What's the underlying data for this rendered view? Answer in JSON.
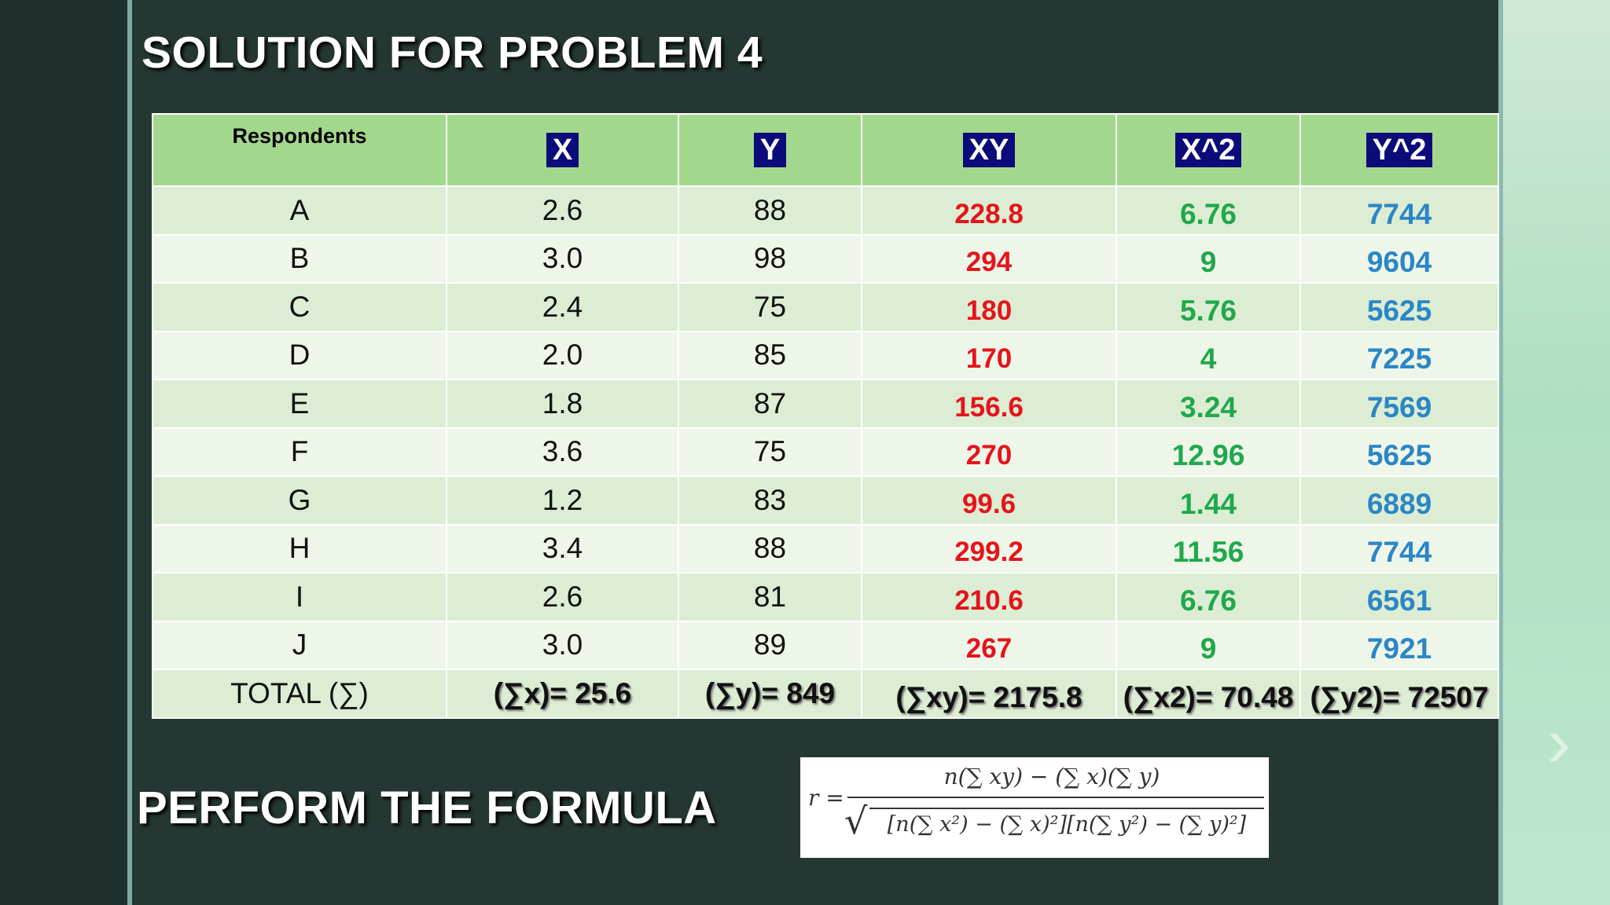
{
  "title": "SOLUTION FOR PROBLEM 4",
  "subtitle": "PERFORM THE FORMULA",
  "table": {
    "headers": [
      "Respondents",
      "X",
      "Y",
      "XY",
      "X^2",
      "Y^2"
    ],
    "rows": [
      {
        "resp": "A",
        "x": "2.6",
        "y": "88",
        "xy": "228.8",
        "x2": "6.76",
        "y2": "7744"
      },
      {
        "resp": "B",
        "x": "3.0",
        "y": "98",
        "xy": "294",
        "x2": "9",
        "y2": "9604"
      },
      {
        "resp": "C",
        "x": "2.4",
        "y": "75",
        "xy": "180",
        "x2": "5.76",
        "y2": "5625"
      },
      {
        "resp": "D",
        "x": "2.0",
        "y": "85",
        "xy": "170",
        "x2": "4",
        "y2": "7225"
      },
      {
        "resp": "E",
        "x": "1.8",
        "y": "87",
        "xy": "156.6",
        "x2": "3.24",
        "y2": "7569"
      },
      {
        "resp": "F",
        "x": "3.6",
        "y": "75",
        "xy": "270",
        "x2": "12.96",
        "y2": "5625"
      },
      {
        "resp": "G",
        "x": "1.2",
        "y": "83",
        "xy": "99.6",
        "x2": "1.44",
        "y2": "6889"
      },
      {
        "resp": "H",
        "x": "3.4",
        "y": "88",
        "xy": "299.2",
        "x2": "11.56",
        "y2": "7744"
      },
      {
        "resp": "I",
        "x": "2.6",
        "y": "81",
        "xy": "210.6",
        "x2": "6.76",
        "y2": "6561"
      },
      {
        "resp": "J",
        "x": "3.0",
        "y": "89",
        "xy": "267",
        "x2": "9",
        "y2": "7921"
      }
    ],
    "totals": {
      "label": "TOTAL (∑)",
      "x": "(∑x)= 25.6",
      "y": "(∑y)= 849",
      "xy": "(∑xy)= 2175.8",
      "x2": "(∑x2)= 70.48",
      "y2": "(∑y2)= 72507"
    }
  },
  "formula": {
    "lhs": "r =",
    "numerator": "n(∑ xy) − (∑ x)(∑ y)",
    "denominator": "[n(∑ x²) − (∑ x)²][n(∑ y²) − (∑ y)²]"
  },
  "colors": {
    "background": "#253732",
    "header_fill": "#a4d78e",
    "header_box": "#0b0b7a",
    "xy_text": "#e5141b",
    "x2_text": "#1fa84c",
    "y2_text": "#2b86c6"
  }
}
